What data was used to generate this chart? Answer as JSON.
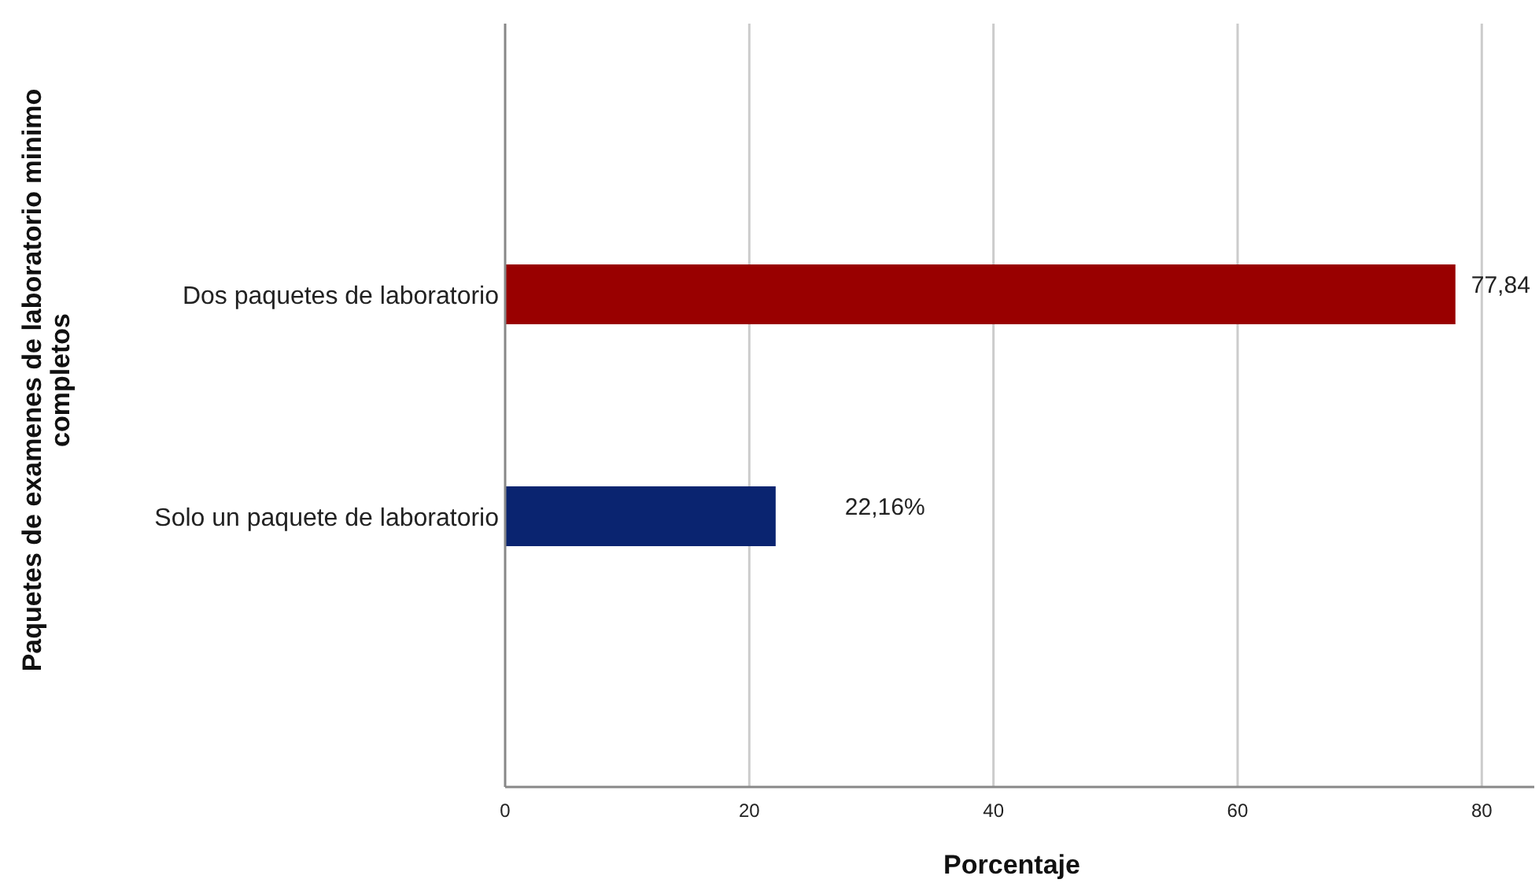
{
  "chart_data": {
    "type": "bar",
    "orientation": "horizontal",
    "xlabel": "Porcentaje",
    "ylabel": "Paquetes de examenes de laboratorio minimo completos",
    "categories": [
      "Dos paquetes de laboratorio",
      "Solo un paquete de laboratorio"
    ],
    "values": [
      77.84,
      22.16
    ],
    "colors": [
      "#990000",
      "#0a2470"
    ],
    "value_labels": [
      "77,84",
      "22,16%"
    ],
    "xlim": [
      0,
      84.3
    ],
    "xticks": [
      0,
      20,
      40,
      60,
      80
    ],
    "grid": "x"
  }
}
